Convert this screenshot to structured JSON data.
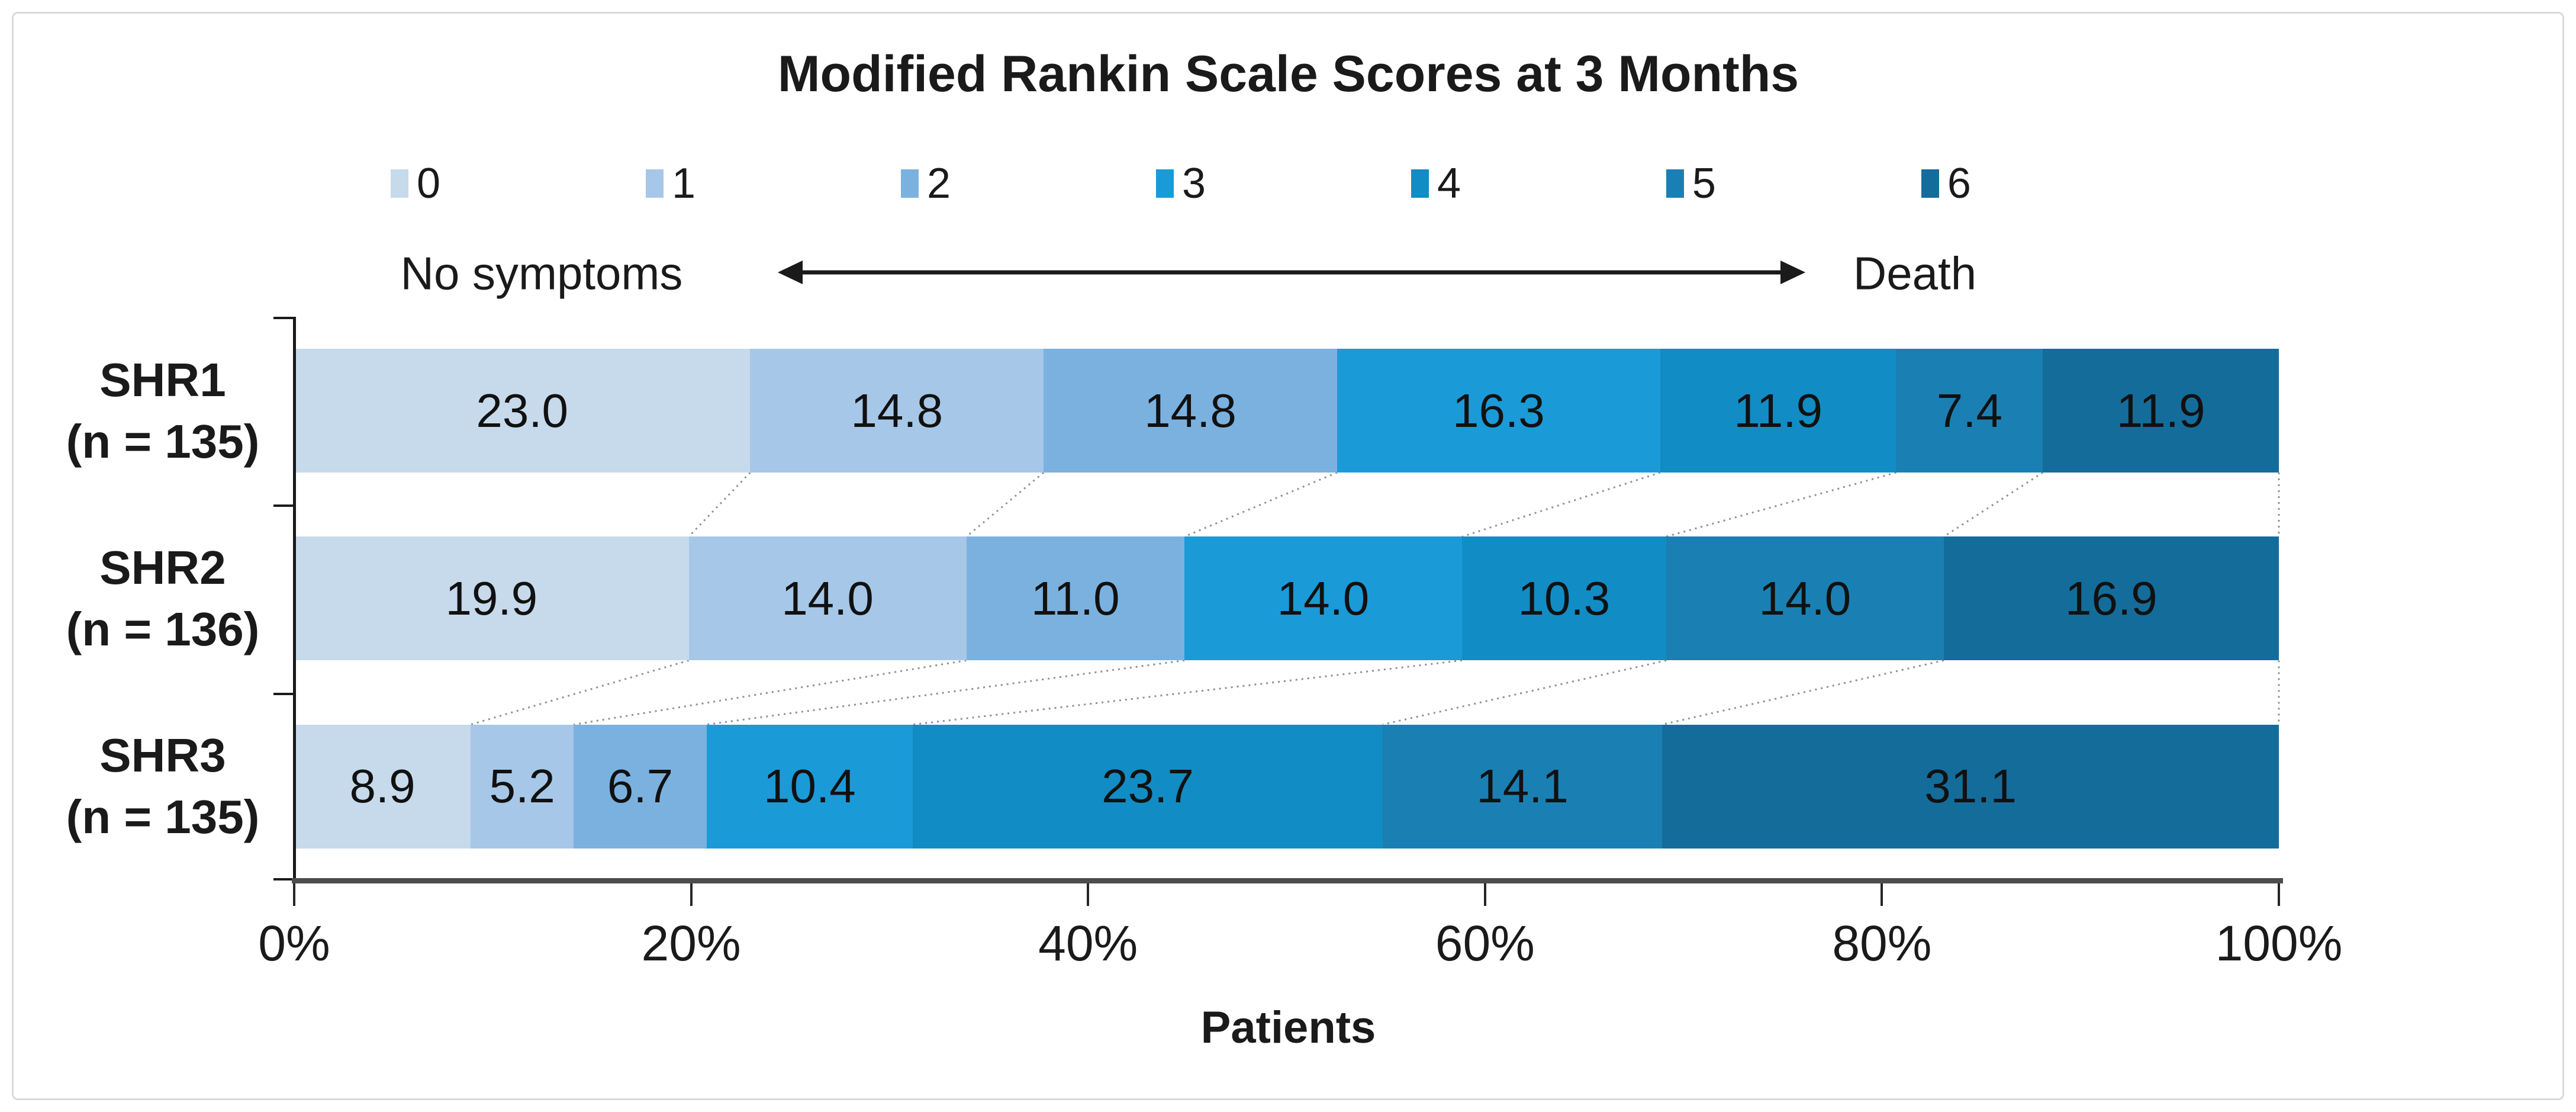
{
  "card": {
    "background": "#ffffff",
    "border_color": "#d9d9d9"
  },
  "chart_data": {
    "type": "bar",
    "variant": "horizontal-stacked-percent",
    "title": "Modified Rankin Scale Scores at 3 Months",
    "xlabel": "Patients",
    "xlim": [
      0,
      100
    ],
    "x_ticks": [
      "0%",
      "20%",
      "40%",
      "60%",
      "80%",
      "100%"
    ],
    "grid": false,
    "legend_position": "top",
    "series_labels": [
      "0",
      "1",
      "2",
      "3",
      "4",
      "5",
      "6"
    ],
    "series_colors": [
      "#C6DAEC",
      "#A6C7E7",
      "#7BB1DF",
      "#1B9AD8",
      "#128CC4",
      "#1A80B4",
      "#146C9B"
    ],
    "scale_annotation": {
      "left": "No symptoms",
      "right": "Death"
    },
    "rows": [
      {
        "label": "SHR1",
        "sublabel": "(n = 135)",
        "values": [
          23.0,
          14.8,
          14.8,
          16.3,
          11.9,
          7.4,
          11.9
        ]
      },
      {
        "label": "SHR2",
        "sublabel": "(n = 136)",
        "values": [
          19.9,
          14.0,
          11.0,
          14.0,
          10.3,
          14.0,
          16.9
        ]
      },
      {
        "label": "SHR3",
        "sublabel": "(n = 135)",
        "values": [
          8.9,
          5.2,
          6.7,
          10.4,
          23.7,
          14.1,
          31.1
        ]
      }
    ],
    "value_label_format": "one-decimal",
    "connector_style": "dotted",
    "connector_color": "#909090",
    "axis_line_color": "#4d4d4d"
  }
}
